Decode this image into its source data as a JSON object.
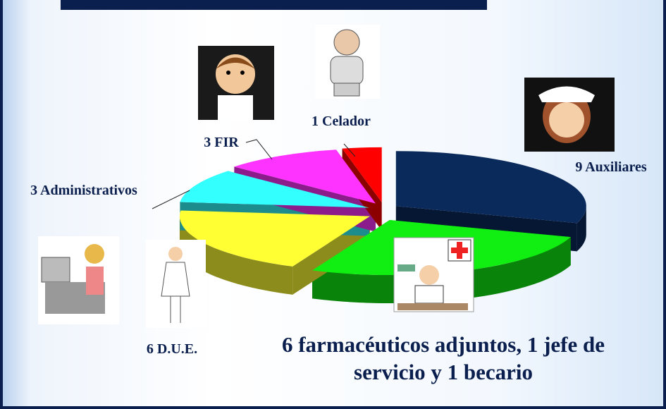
{
  "chart_data": {
    "type": "pie",
    "categories": [
      "9 Auxiliares",
      "6 farmacéuticos adjuntos, 1 jefe de servicio y 1 becario",
      "6 D.U.E.",
      "3 Administrativos",
      "3 FIR",
      "1 Celador"
    ],
    "values": [
      9,
      8,
      6,
      3,
      3,
      1
    ],
    "colors": [
      "#0b2a5c",
      "#11ee11",
      "#ffff33",
      "#33ffff",
      "#ff33ff",
      "#ff0000"
    ]
  }
}
